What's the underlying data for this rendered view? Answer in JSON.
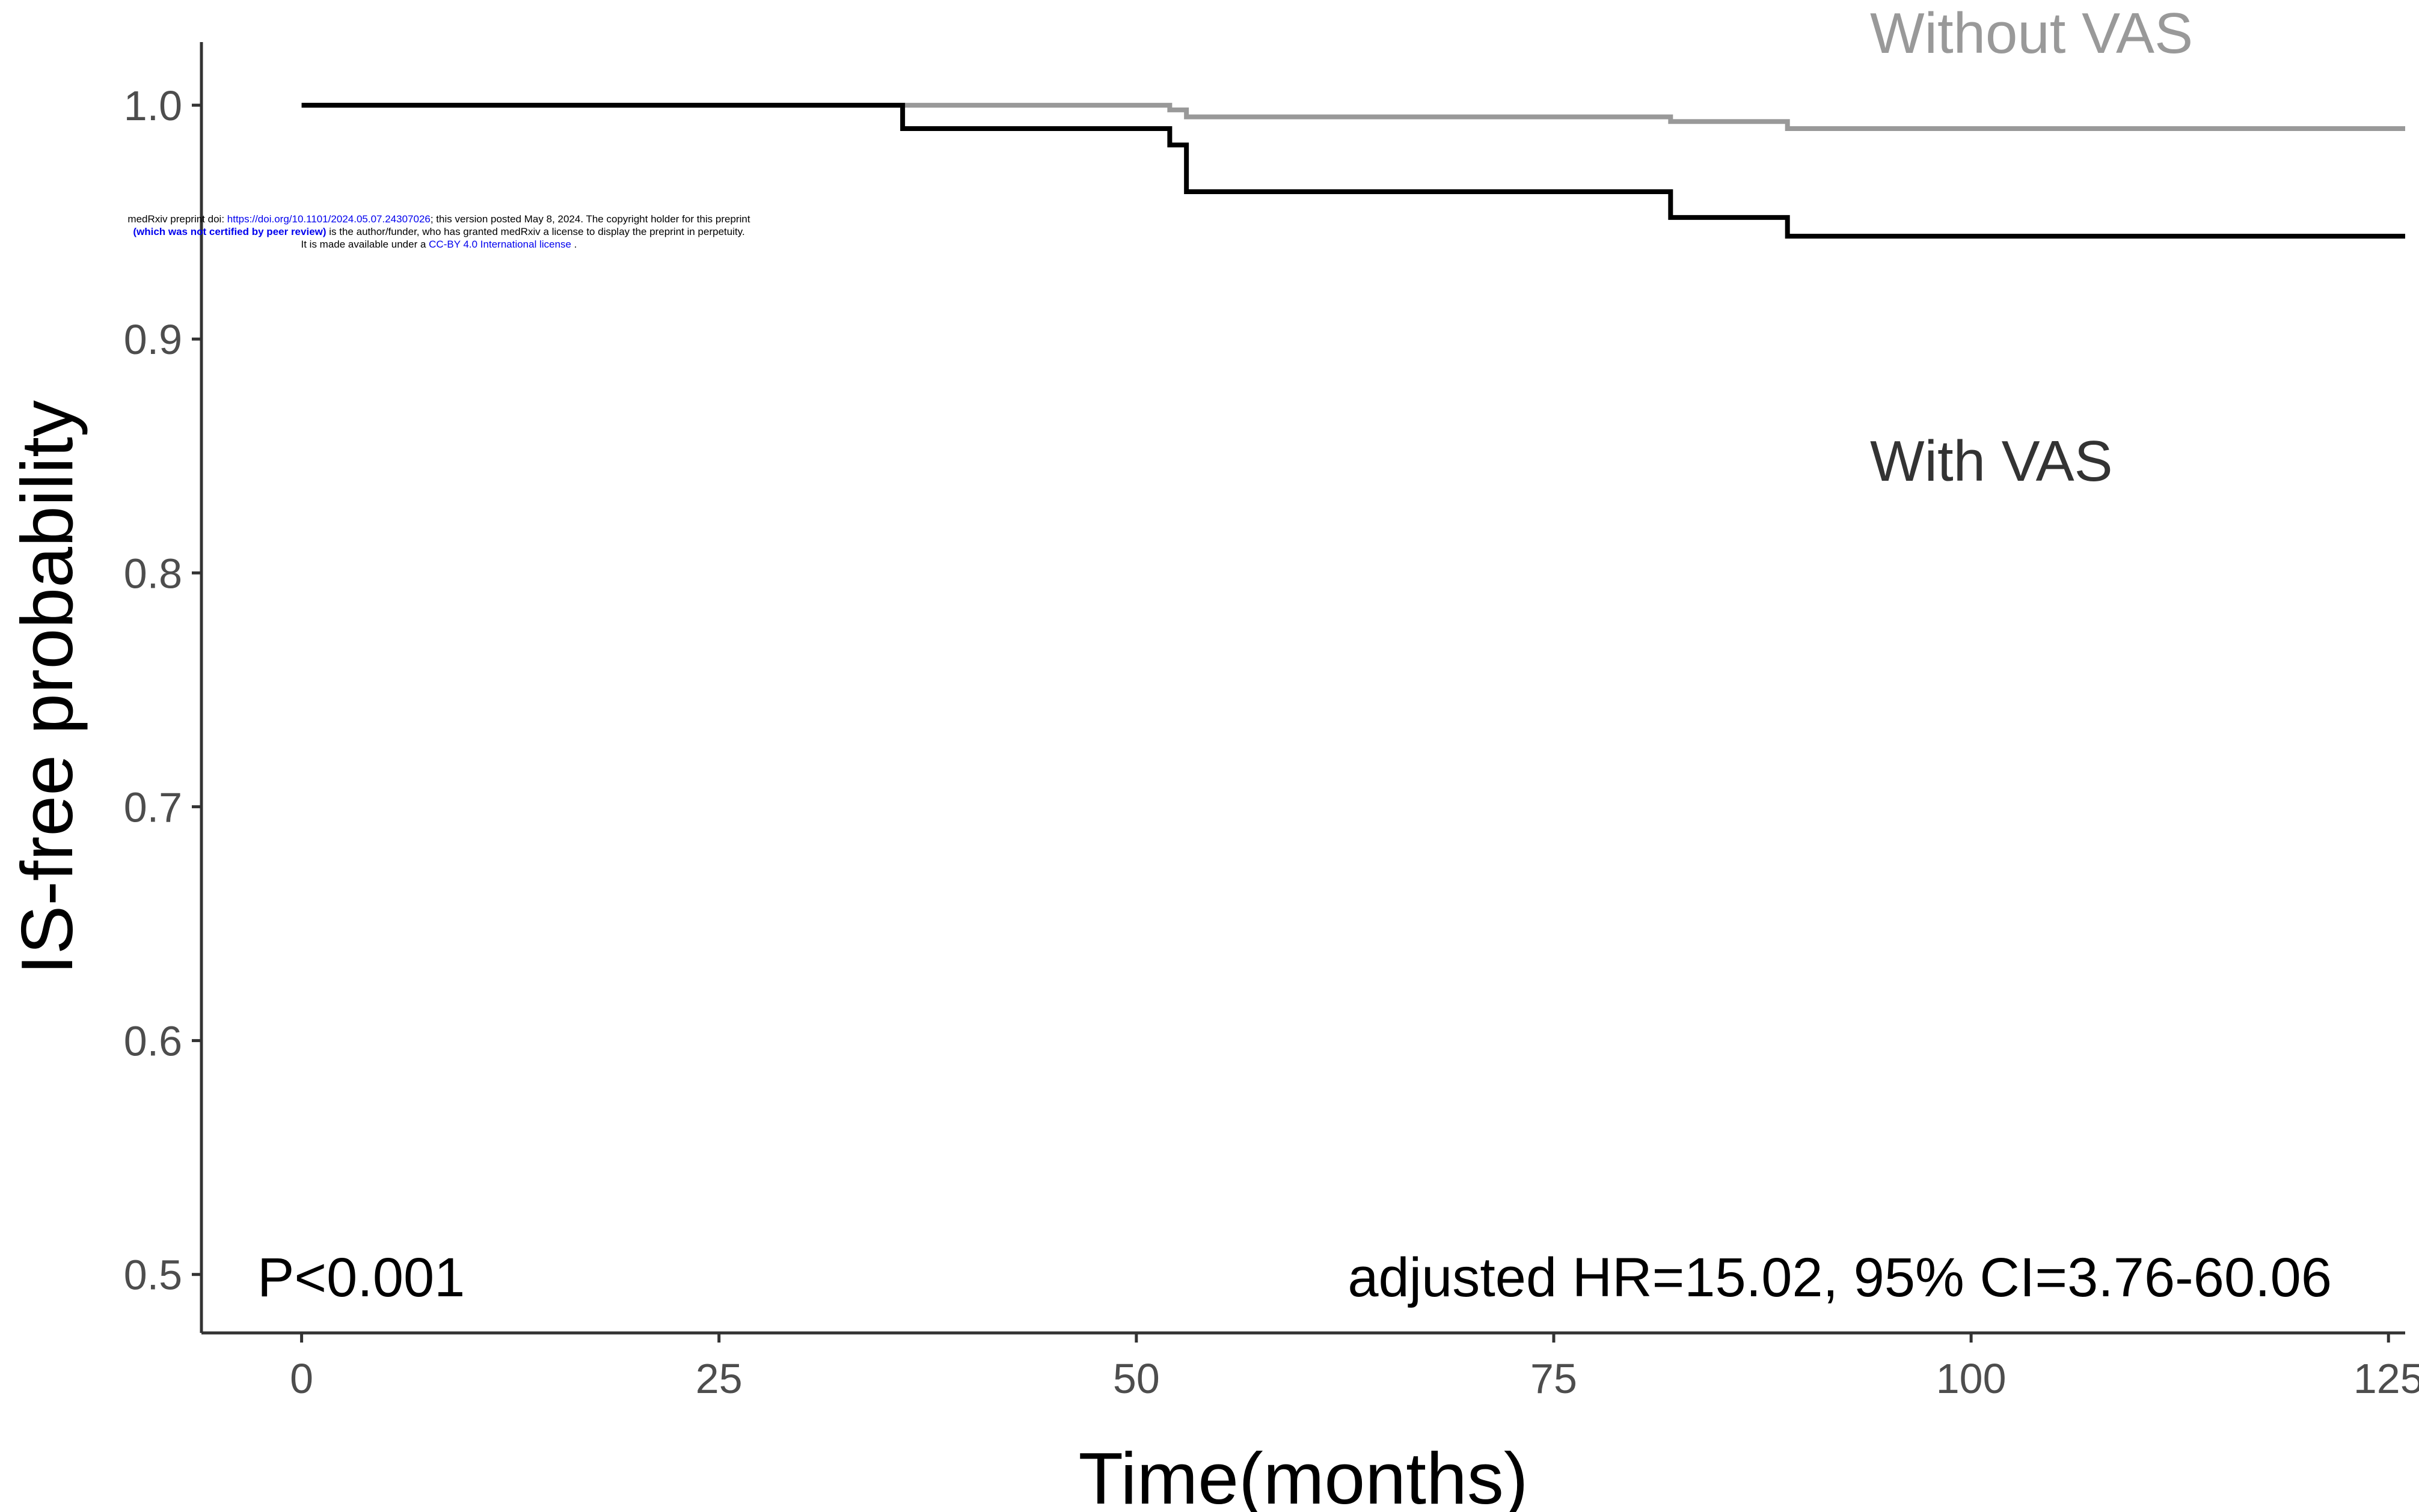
{
  "chart_data": {
    "type": "line",
    "step": true,
    "xlabel": "Time(months)",
    "ylabel": "IS-free probability",
    "xlim": [
      -6,
      126
    ],
    "ylim": [
      0.475,
      1.027
    ],
    "xticks": [
      0,
      25,
      50,
      75,
      100,
      125
    ],
    "yticks": [
      0.5,
      0.6,
      0.7,
      0.8,
      0.9,
      1.0
    ],
    "xtick_labels": [
      "0",
      "25",
      "50",
      "75",
      "100",
      "125"
    ],
    "ytick_labels": [
      "0.5",
      "0.6",
      "0.7",
      "0.8",
      "0.9",
      "1.0"
    ],
    "grid": false,
    "series": [
      {
        "name": "Without VAS",
        "color": "#999999",
        "x": [
          0,
          52,
          53,
          82,
          89,
          126
        ],
        "y": [
          1.0,
          0.998,
          0.995,
          0.993,
          0.99,
          0.99
        ]
      },
      {
        "name": "With VAS",
        "color": "#000000",
        "x": [
          0,
          36,
          52,
          53,
          82,
          89,
          126
        ],
        "y": [
          1.0,
          0.99,
          0.983,
          0.963,
          0.952,
          0.944,
          0.944
        ]
      }
    ],
    "annotations": {
      "p_value": "P<0.001",
      "hazard_ratio": "adjusted HR=15.02, 95% CI=3.76-60.06"
    }
  },
  "watermark": {
    "line1_pre": "medRxiv preprint doi: ",
    "line1_link": "https://doi.org/10.1101/2024.05.07.24307026",
    "line1_post": "; this version posted May 8, 2024. The copyright holder for this preprint",
    "line2_bold": "(which was not certified by peer review)",
    "line2_post": " is the author/funder, who has granted medRxiv a license to display the preprint in perpetuity.",
    "line3_pre": "It is made available under a ",
    "line3_link": "CC-BY 4.0 International license",
    "line3_post": " ."
  }
}
